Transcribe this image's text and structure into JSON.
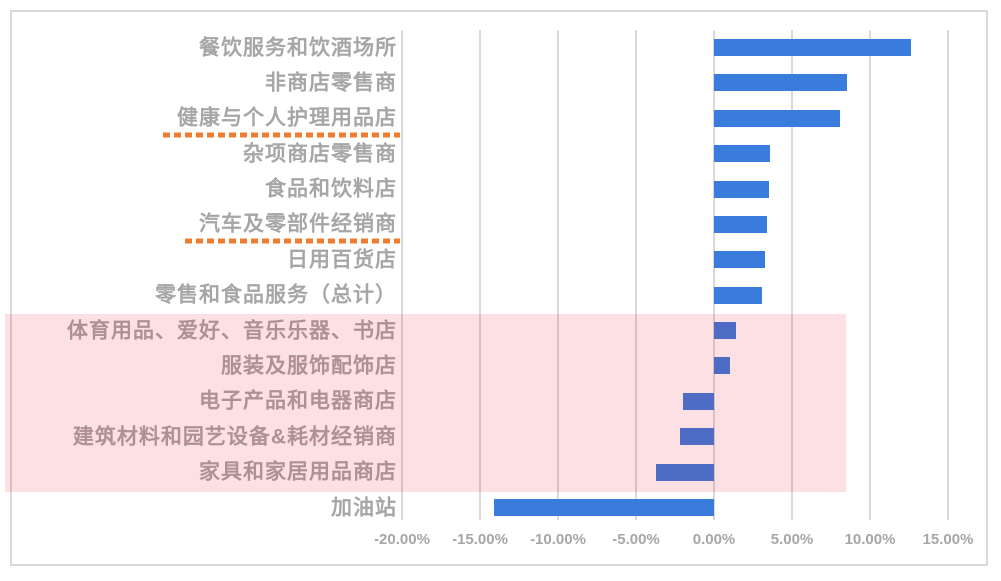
{
  "chart_data": {
    "type": "bar",
    "orientation": "horizontal",
    "title": "",
    "xlabel": "",
    "ylabel": "",
    "categories": [
      "餐饮服务和饮酒场所",
      "非商店零售商",
      "健康与个人护理用品店",
      "杂项商店零售商",
      "食品和饮料店",
      "汽车及零部件经销商",
      "日用百货店",
      "零售和食品服务（总计）",
      "体育用品、爱好、音乐乐器、书店",
      "服装及服饰配饰店",
      "电子产品和电器商店",
      "建筑材料和园艺设备&耗材经销商",
      "家具和家居用品商店",
      "加油站"
    ],
    "values": [
      12.6,
      8.5,
      8.1,
      3.6,
      3.5,
      3.4,
      3.3,
      3.1,
      1.4,
      1.0,
      -2.0,
      -2.2,
      -3.7,
      -14.1
    ],
    "value_unit": "percent",
    "xlim": [
      -20,
      15
    ],
    "x_tick_values": [
      -20,
      -15,
      -10,
      -5,
      0,
      5,
      10,
      15
    ],
    "x_ticks": [
      "-20.00%",
      "-15.00%",
      "-10.00%",
      "-5.00%",
      "0.00%",
      "5.00%",
      "10.00%",
      "15.00%"
    ],
    "grid": "vertical-on",
    "legend": "none",
    "bar_color": "#3a7cdc",
    "grid_color": "#d9d9d9",
    "text_color": "#a6a6a6",
    "underline_color": "#ed7d31",
    "underlined_category_indexes": [
      2,
      5
    ],
    "underlined_categories": [
      "健康与个人护理用品店",
      "汽车及零部件经销商"
    ],
    "highlight": {
      "row_start_index": 8,
      "row_end_index": 12,
      "categories_covered": [
        "体育用品、爱好、音乐乐器、书店",
        "服装及服饰配饰店",
        "电子产品和电器商店",
        "建筑材料和园艺设备&耗材经销商",
        "家具和家居用品商店"
      ],
      "color": "#e60019",
      "opacity": 0.12
    }
  }
}
